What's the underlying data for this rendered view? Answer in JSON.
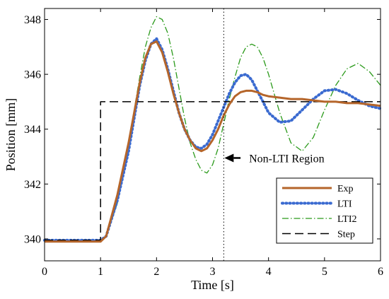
{
  "chart_data": {
    "type": "line",
    "title": "",
    "xlabel": "Time [s]",
    "ylabel": "Position [mm]",
    "xlim": [
      0,
      6
    ],
    "ylim": [
      339.2,
      348.4
    ],
    "xticks": [
      0,
      1,
      2,
      3,
      4,
      5,
      6
    ],
    "yticks": [
      340,
      342,
      344,
      346,
      348
    ],
    "grid": false,
    "legend_position": "bottom-right",
    "annotation": {
      "text": "Non-LTI Region",
      "vline_x": 3.2,
      "arrow": {
        "from": [
          3.5,
          342.95
        ],
        "to": [
          3.2,
          342.95
        ]
      }
    },
    "series": [
      {
        "name": "Exp",
        "style": "solid",
        "color": "#b5652a",
        "x": [
          0,
          0.5,
          1.0,
          1.1,
          1.3,
          1.5,
          1.6,
          1.7,
          1.8,
          1.9,
          2.0,
          2.1,
          2.2,
          2.3,
          2.4,
          2.5,
          2.6,
          2.7,
          2.8,
          2.9,
          3.0,
          3.1,
          3.2,
          3.3,
          3.4,
          3.5,
          3.6,
          3.7,
          3.8,
          3.9,
          4.0,
          4.2,
          4.4,
          4.6,
          4.8,
          5.0,
          5.2,
          5.4,
          5.6,
          5.8,
          6.0
        ],
        "y": [
          339.9,
          339.9,
          339.9,
          340.1,
          341.6,
          343.5,
          344.6,
          345.7,
          346.6,
          347.1,
          347.2,
          346.8,
          346.1,
          345.3,
          344.6,
          344.0,
          343.6,
          343.3,
          343.2,
          343.3,
          343.6,
          344.0,
          344.5,
          344.9,
          345.2,
          345.35,
          345.4,
          345.4,
          345.35,
          345.25,
          345.2,
          345.15,
          345.1,
          345.1,
          345.05,
          345.0,
          345.0,
          344.95,
          344.95,
          344.9,
          344.85
        ]
      },
      {
        "name": "LTI",
        "style": "dotted",
        "color": "#3a6ad0",
        "x": [
          0,
          0.5,
          1.0,
          1.1,
          1.3,
          1.5,
          1.6,
          1.7,
          1.8,
          1.9,
          2.0,
          2.1,
          2.2,
          2.3,
          2.4,
          2.5,
          2.6,
          2.7,
          2.8,
          2.9,
          3.0,
          3.1,
          3.2,
          3.3,
          3.4,
          3.5,
          3.6,
          3.7,
          3.8,
          3.9,
          4.0,
          4.2,
          4.4,
          4.6,
          4.8,
          5.0,
          5.2,
          5.4,
          5.6,
          5.8,
          6.0
        ],
        "y": [
          339.95,
          339.95,
          339.95,
          340.1,
          341.4,
          343.2,
          344.4,
          345.6,
          346.5,
          347.1,
          347.3,
          346.9,
          346.2,
          345.4,
          344.6,
          344.0,
          343.6,
          343.35,
          343.3,
          343.45,
          343.8,
          344.3,
          344.8,
          345.3,
          345.7,
          345.95,
          346.0,
          345.8,
          345.4,
          345.0,
          344.6,
          344.25,
          344.3,
          344.7,
          345.1,
          345.4,
          345.45,
          345.3,
          345.05,
          344.85,
          344.75
        ]
      },
      {
        "name": "LTI2",
        "style": "dashdot",
        "color": "#2a9a1a",
        "x": [
          0,
          0.5,
          1.0,
          1.1,
          1.3,
          1.5,
          1.6,
          1.7,
          1.8,
          1.9,
          2.0,
          2.1,
          2.2,
          2.3,
          2.4,
          2.5,
          2.6,
          2.7,
          2.8,
          2.9,
          3.0,
          3.1,
          3.2,
          3.3,
          3.4,
          3.5,
          3.6,
          3.7,
          3.8,
          3.9,
          4.0,
          4.2,
          4.4,
          4.6,
          4.8,
          5.0,
          5.2,
          5.4,
          5.6,
          5.8,
          6.0
        ],
        "y": [
          339.95,
          339.95,
          339.95,
          340.1,
          341.3,
          343.4,
          344.7,
          345.9,
          347.0,
          347.7,
          348.1,
          348.0,
          347.5,
          346.6,
          345.5,
          344.4,
          343.5,
          342.9,
          342.5,
          342.4,
          342.7,
          343.3,
          344.2,
          345.1,
          345.9,
          346.6,
          347.0,
          347.1,
          347.0,
          346.6,
          346.0,
          344.6,
          343.5,
          343.2,
          343.7,
          344.7,
          345.6,
          346.2,
          346.4,
          346.1,
          345.6
        ]
      },
      {
        "name": "Step",
        "style": "dashed",
        "color": "#000000",
        "x": [
          0,
          1.0,
          1.0,
          6.0
        ],
        "y": [
          339.95,
          339.95,
          345.0,
          345.0
        ]
      }
    ]
  }
}
